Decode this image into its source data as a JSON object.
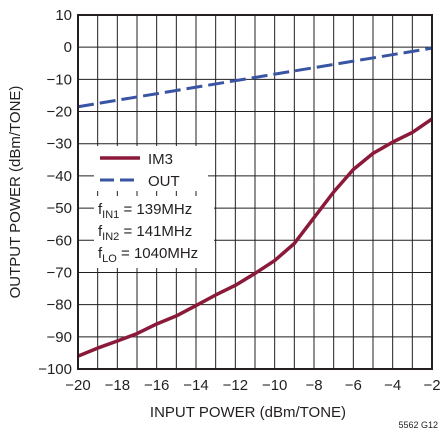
{
  "chart_data": {
    "type": "line",
    "xlabel": "INPUT POWER (dBm/TONE)",
    "ylabel": "OUTPUT POWER (dBm/TONE)",
    "xlim": [
      -20,
      -2
    ],
    "ylim": [
      -100,
      10
    ],
    "x_ticks": [
      -20,
      -18,
      -16,
      -14,
      -12,
      -10,
      -8,
      -6,
      -4,
      -2
    ],
    "y_ticks": [
      10,
      0,
      -10,
      -20,
      -30,
      -40,
      -50,
      -60,
      -70,
      -80,
      -90,
      -100
    ],
    "grid": true,
    "legend_position": "left",
    "series": [
      {
        "name": "IM3",
        "color": "#8b1a3a",
        "style": "solid",
        "x": [
          -20,
          -19,
          -18,
          -17,
          -16,
          -15,
          -14,
          -13,
          -12,
          -11,
          -10,
          -9,
          -8,
          -7,
          -6,
          -5,
          -4,
          -3,
          -2
        ],
        "y": [
          -96,
          -93.5,
          -91.3,
          -89,
          -86,
          -83.5,
          -80.3,
          -77,
          -74,
          -70.3,
          -66.3,
          -61,
          -53,
          -45,
          -38,
          -33,
          -29.5,
          -26.5,
          -22.3
        ]
      },
      {
        "name": "OUT",
        "color": "#3a54a4",
        "style": "dashed",
        "x": [
          -20,
          -2
        ],
        "y": [
          -18.5,
          -0.3
        ]
      }
    ],
    "annotations": [
      {
        "main": "f",
        "sub": "IN1",
        "rest": " = 139MHz"
      },
      {
        "main": "f",
        "sub": "IN2",
        "rest": " = 141MHz"
      },
      {
        "main": "f",
        "sub": "LO",
        "rest": " = 1040MHz"
      }
    ],
    "figure_code": "5562 G12"
  }
}
